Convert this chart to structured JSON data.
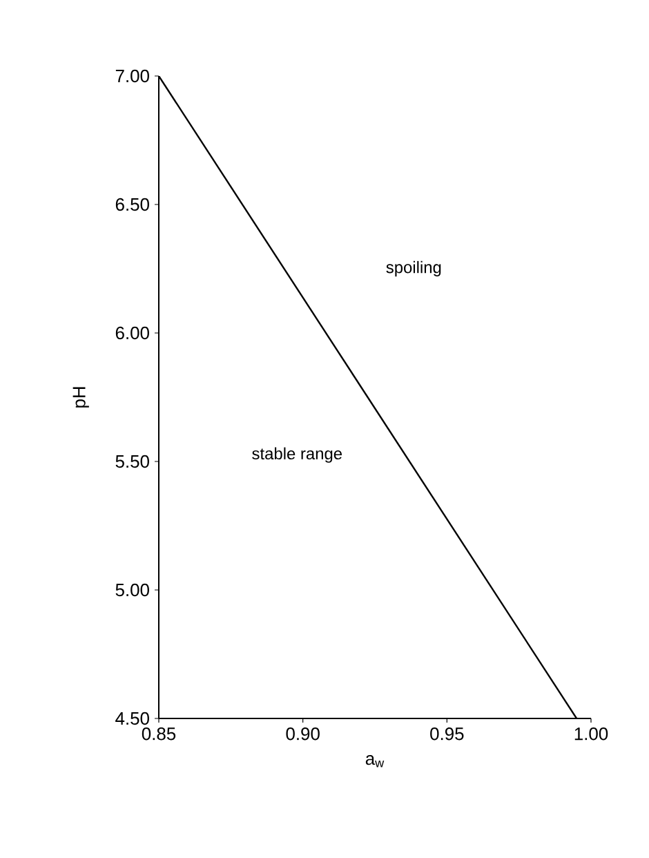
{
  "chart_data": {
    "type": "line",
    "xlabel": "a$_{w}$",
    "ylabel": "pH",
    "x": [
      0.85,
      0.995
    ],
    "series": [
      {
        "color": "#000000",
        "values": [
          7.0,
          4.5
        ]
      }
    ],
    "xlim": [
      0.85,
      1.0
    ],
    "ylim": [
      4.5,
      7.0
    ],
    "xticks": [
      {
        "value": 0.85,
        "label": "0.85"
      },
      {
        "value": 0.9,
        "label": "0.90"
      },
      {
        "value": 0.95,
        "label": "0.95"
      },
      {
        "value": 1.0,
        "label": "1.00"
      }
    ],
    "yticks": [
      {
        "value": 4.5,
        "label": "4.50"
      },
      {
        "value": 5.0,
        "label": "5.00"
      },
      {
        "value": 5.5,
        "label": "5.50"
      },
      {
        "value": 6.0,
        "label": "6.00"
      },
      {
        "value": 6.5,
        "label": "6.50"
      },
      {
        "value": 7.0,
        "label": "7.00"
      }
    ],
    "annotations": [
      "spoiling",
      "stable range"
    ],
    "grid": false,
    "marker": "none",
    "line_style": "solid"
  }
}
